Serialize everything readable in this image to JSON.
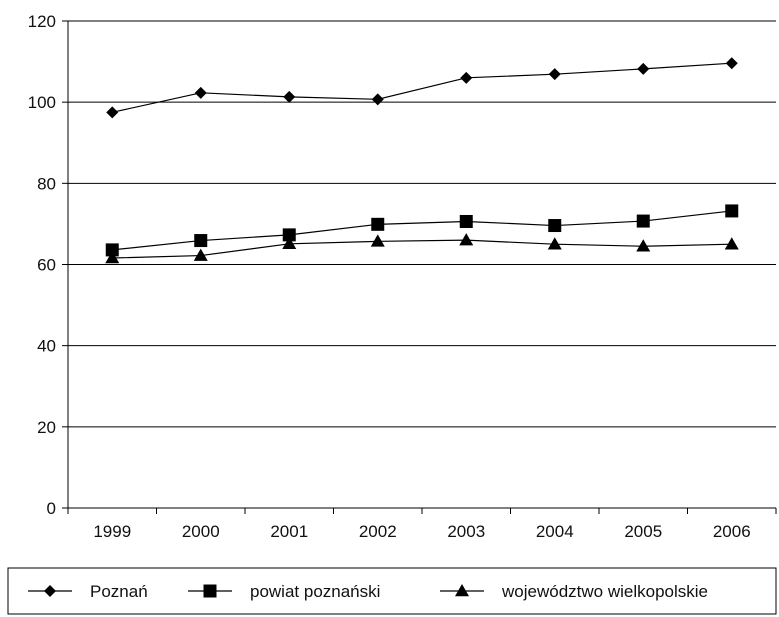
{
  "chart_data": {
    "type": "line",
    "title": "",
    "xlabel": "",
    "ylabel": "",
    "ylim": [
      0,
      120
    ],
    "yticks": [
      0,
      20,
      40,
      60,
      80,
      100,
      120
    ],
    "grid": true,
    "legend_position": "bottom",
    "categories": [
      "1999",
      "2000",
      "2001",
      "2002",
      "2003",
      "2004",
      "2005",
      "2006"
    ],
    "series": [
      {
        "name": "Poznań",
        "marker": "diamond",
        "color": "#000000",
        "values": [
          97.5,
          102.3,
          101.3,
          100.7,
          106.0,
          106.9,
          108.2,
          109.6
        ]
      },
      {
        "name": "powiat poznański",
        "marker": "square",
        "color": "#000000",
        "values": [
          63.6,
          65.9,
          67.3,
          69.9,
          70.6,
          69.6,
          70.7,
          73.2
        ]
      },
      {
        "name": "województwo wielkopolskie",
        "marker": "triangle",
        "color": "#000000",
        "values": [
          61.6,
          62.2,
          65.1,
          65.7,
          66.0,
          65.0,
          64.5,
          65.0
        ]
      }
    ]
  }
}
